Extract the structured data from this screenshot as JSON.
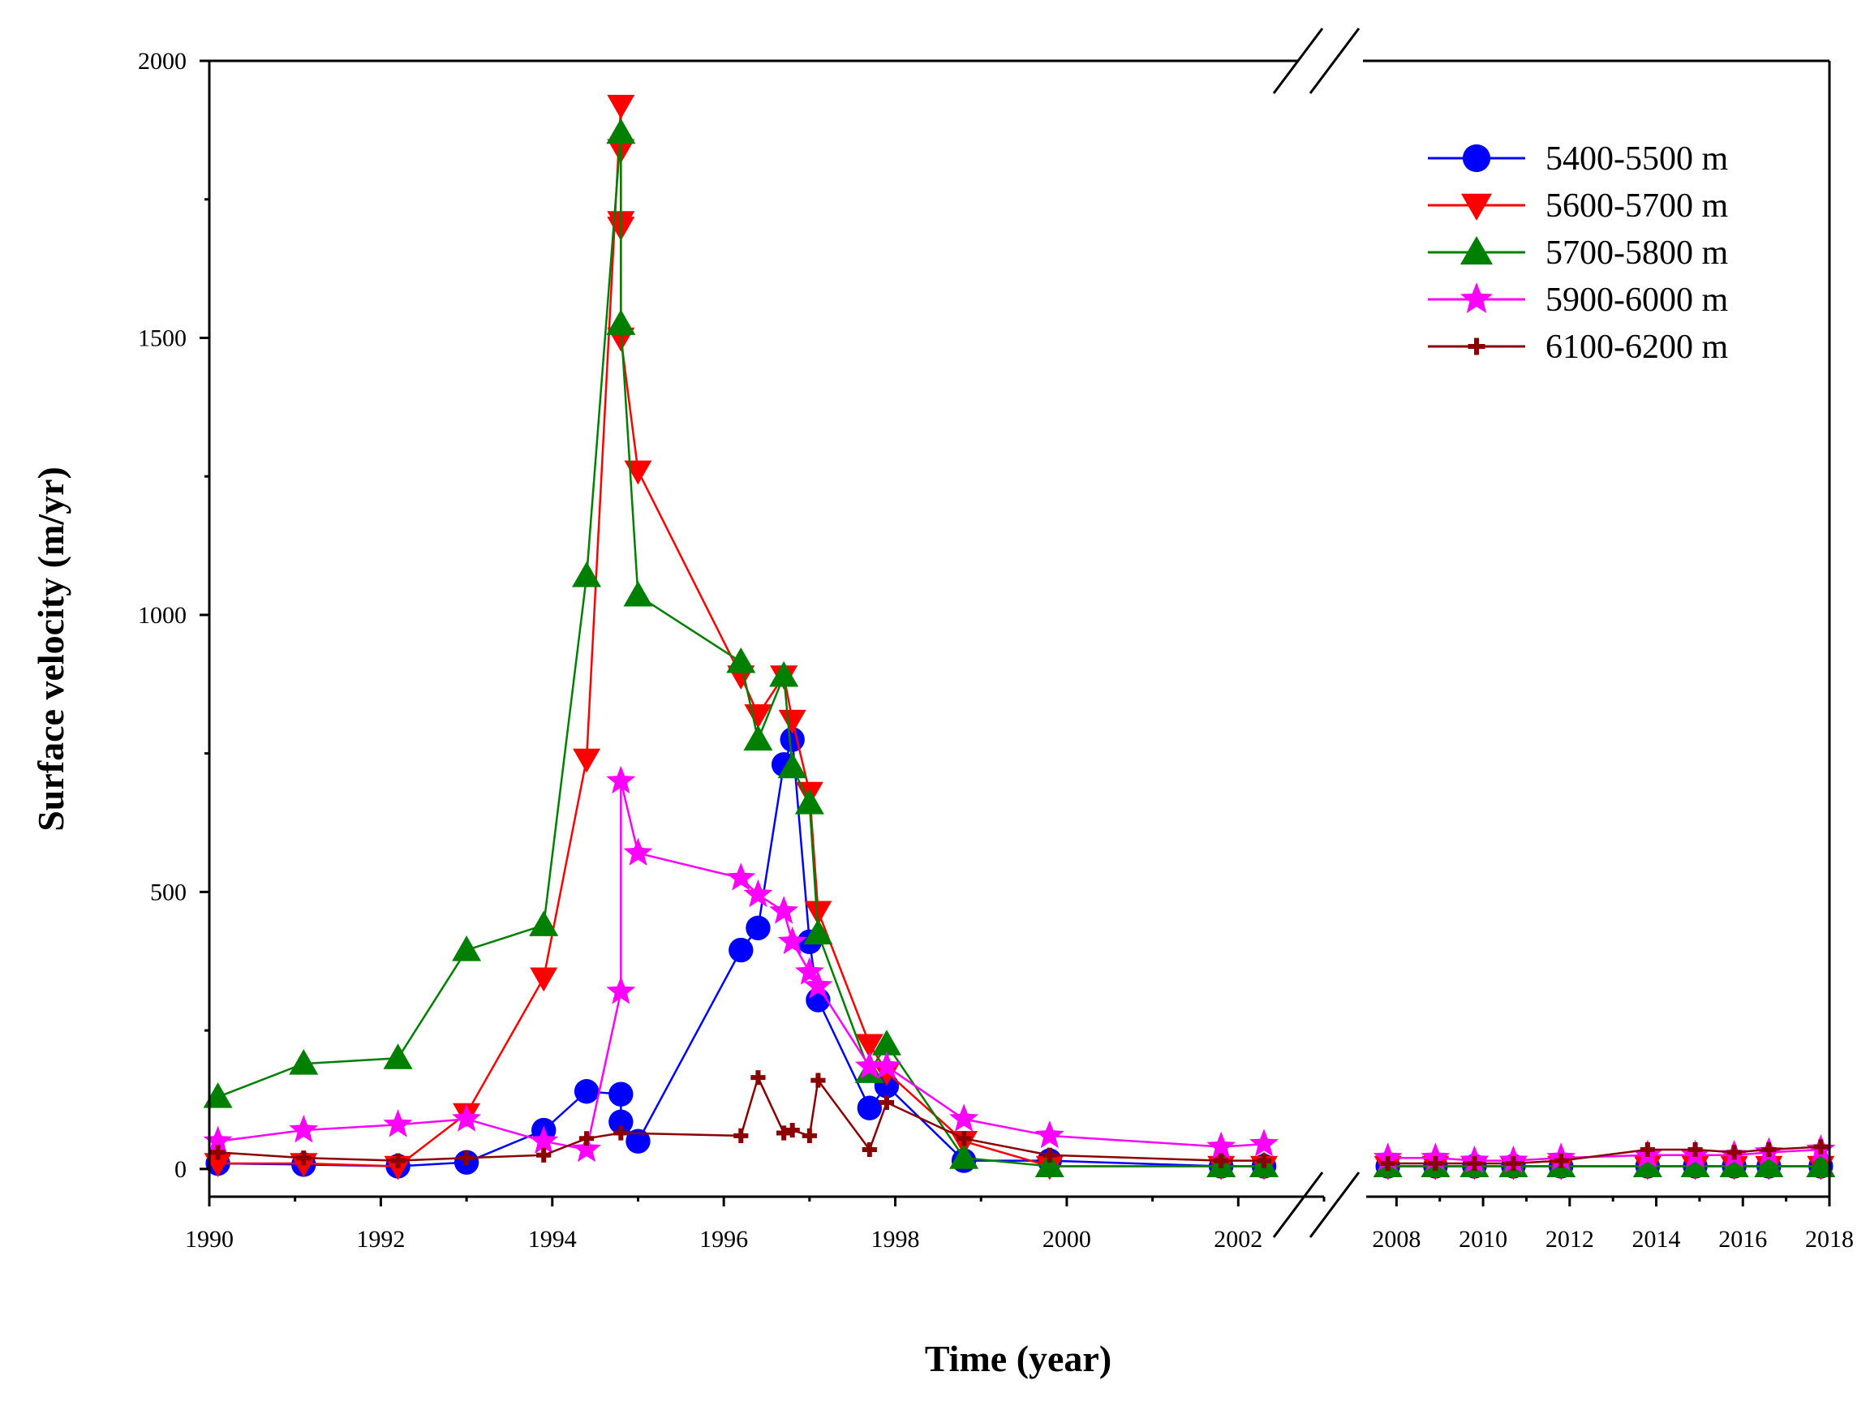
{
  "chart_data": {
    "type": "line",
    "title": "",
    "xlabel": "Time (year)",
    "ylabel": "Surface velocity (m/yr)",
    "ylim": [
      -50,
      2000
    ],
    "yticks": [
      0,
      500,
      1000,
      1500,
      2000
    ],
    "x_segments": [
      {
        "range": [
          1990,
          2003.0
        ],
        "ticks": [
          1990,
          1992,
          1994,
          1996,
          1998,
          2000,
          2002
        ]
      },
      {
        "range": [
          2007.3,
          2018
        ],
        "ticks": [
          2008,
          2010,
          2012,
          2014,
          2016,
          2018
        ]
      }
    ],
    "axis_break": true,
    "legend_position": "top-right",
    "series": [
      {
        "name": "5400-5500 m",
        "color": "#0000ff",
        "marker": "circle",
        "x": [
          1990.1,
          1991.1,
          1992.2,
          1993.0,
          1993.9,
          1994.4,
          1994.8,
          1994.8,
          1995.0,
          1996.2,
          1996.4,
          1996.7,
          1996.8,
          1997.0,
          1997.1,
          1997.7,
          1997.9,
          1998.8,
          1999.8,
          2001.8,
          2002.3,
          2007.8,
          2008.9,
          2009.8,
          2010.7,
          2011.8,
          2013.8,
          2014.9,
          2015.8,
          2016.6,
          2017.8
        ],
        "y": [
          10,
          8,
          5,
          12,
          70,
          140,
          135,
          85,
          50,
          395,
          435,
          730,
          775,
          410,
          305,
          110,
          150,
          15,
          15,
          5,
          5,
          5,
          5,
          5,
          5,
          5,
          5,
          5,
          5,
          5,
          5
        ]
      },
      {
        "name": "5600-5700 m",
        "color": "#ff0000",
        "marker": "triangle-down",
        "x": [
          1990.1,
          1991.1,
          1992.2,
          1993.0,
          1993.9,
          1994.4,
          1994.8,
          1994.8,
          1994.8,
          1994.8,
          1994.8,
          1995.0,
          1996.2,
          1996.4,
          1996.7,
          1996.8,
          1997.0,
          1997.1,
          1997.7,
          1997.9,
          1998.8,
          1999.8,
          2001.8,
          2002.3,
          2007.8,
          2008.9,
          2009.8,
          2010.7,
          2011.8,
          2013.8,
          2014.9,
          2015.8,
          2016.6,
          2017.8
        ],
        "y": [
          10,
          10,
          5,
          100,
          345,
          740,
          1920,
          1840,
          1710,
          1700,
          1500,
          1260,
          890,
          820,
          890,
          810,
          680,
          465,
          225,
          175,
          50,
          5,
          5,
          5,
          5,
          5,
          5,
          5,
          5,
          5,
          5,
          5,
          5,
          5
        ]
      },
      {
        "name": "5700-5800 m",
        "color": "#008000",
        "marker": "triangle-up",
        "x": [
          1990.1,
          1991.1,
          1992.2,
          1993.0,
          1993.9,
          1994.4,
          1994.8,
          1994.8,
          1995.0,
          1996.2,
          1996.4,
          1996.7,
          1996.8,
          1997.0,
          1997.1,
          1997.7,
          1997.9,
          1998.8,
          1999.8,
          2001.8,
          2002.3,
          2007.8,
          2008.9,
          2009.8,
          2010.7,
          2011.8,
          2013.8,
          2014.9,
          2015.8,
          2016.6,
          2017.8
        ],
        "y": [
          130,
          190,
          200,
          395,
          440,
          1070,
          1870,
          1525,
          1035,
          915,
          775,
          890,
          725,
          660,
          425,
          175,
          225,
          20,
          5,
          5,
          5,
          5,
          5,
          5,
          5,
          5,
          5,
          5,
          5,
          5,
          5
        ]
      },
      {
        "name": "5900-6000 m",
        "color": "#ff00ff",
        "marker": "star",
        "x": [
          1990.1,
          1991.1,
          1992.2,
          1993.0,
          1993.9,
          1994.4,
          1994.8,
          1994.8,
          1995.0,
          1996.2,
          1996.4,
          1996.7,
          1996.8,
          1997.0,
          1997.1,
          1997.7,
          1997.9,
          1998.8,
          1999.8,
          2001.8,
          2002.3,
          2007.8,
          2008.9,
          2009.8,
          2010.7,
          2011.8,
          2013.8,
          2014.9,
          2015.8,
          2016.6,
          2017.8
        ],
        "y": [
          50,
          70,
          80,
          90,
          50,
          35,
          320,
          700,
          570,
          525,
          495,
          465,
          410,
          355,
          330,
          185,
          185,
          90,
          60,
          40,
          45,
          20,
          20,
          15,
          15,
          20,
          25,
          25,
          25,
          30,
          35
        ]
      },
      {
        "name": "6100-6200 m",
        "color": "#8b0000",
        "marker": "plus",
        "x": [
          1990.1,
          1991.1,
          1992.2,
          1993.0,
          1993.9,
          1994.4,
          1994.8,
          1996.2,
          1996.4,
          1996.7,
          1996.8,
          1997.0,
          1997.1,
          1997.7,
          1997.9,
          1998.8,
          1999.8,
          2001.8,
          2002.3,
          2007.8,
          2008.9,
          2009.8,
          2010.7,
          2011.8,
          2013.8,
          2014.9,
          2015.8,
          2016.6,
          2017.8
        ],
        "y": [
          30,
          20,
          15,
          20,
          25,
          55,
          65,
          60,
          165,
          65,
          70,
          60,
          160,
          35,
          120,
          55,
          25,
          15,
          15,
          10,
          10,
          10,
          10,
          15,
          35,
          35,
          30,
          35,
          40
        ]
      }
    ]
  }
}
